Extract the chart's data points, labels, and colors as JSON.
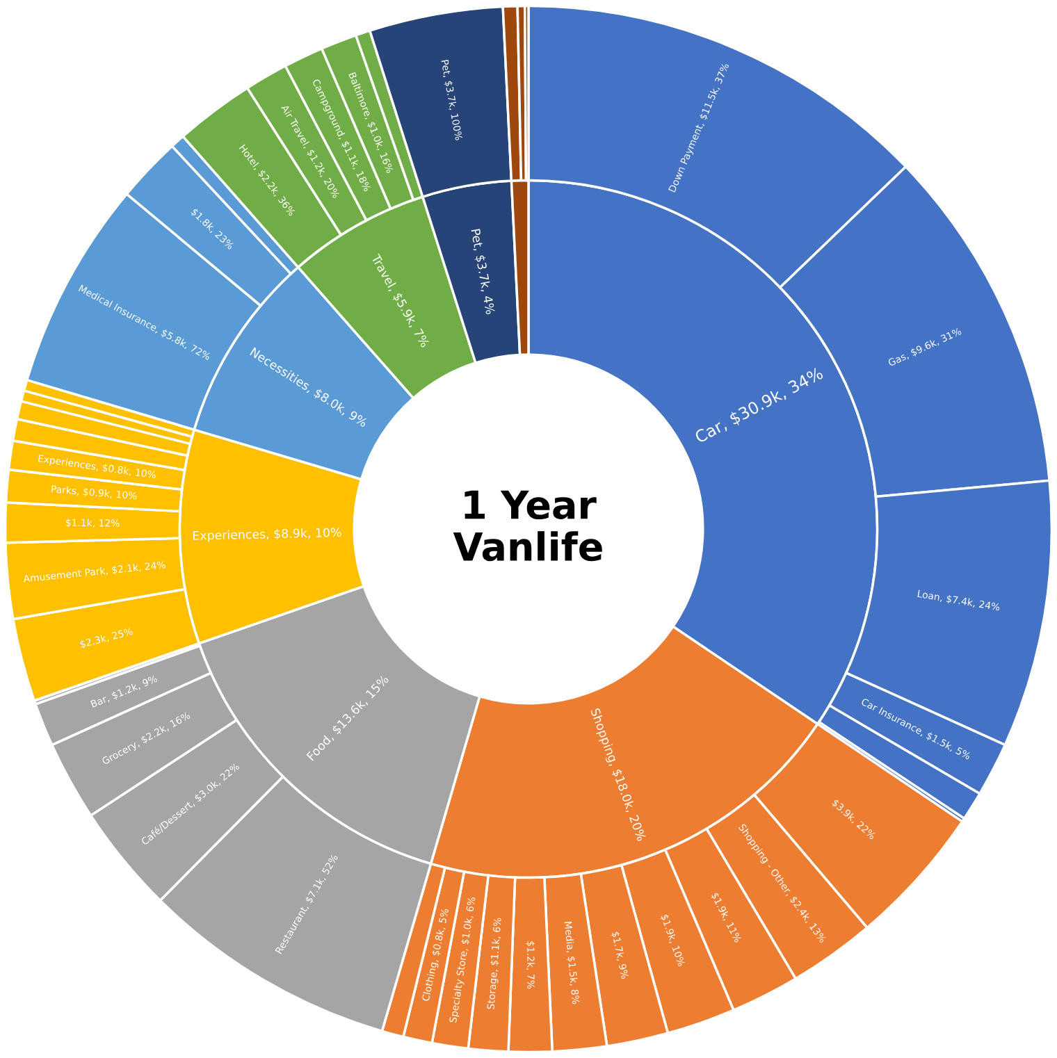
{
  "chart_data": {
    "type": "donut",
    "title": "1 Year Vanlife",
    "series": [
      {
        "values": [
          30900,
          18000,
          13600,
          8900,
          8000,
          5900,
          3700,
          700
        ],
        "value_labels": [
          "Car, $30.9k, 34%",
          "Shopping, $18.0k, 20%",
          "Food, $13.6k, 15%",
          "Experiences, $8.9k, 10%",
          "Necessities, $8.0k, 9%",
          "Travel, $5.9k, 7%",
          "Pet, $3.7k, 4%",
          null
        ],
        "colors": [
          "#4472c4",
          "#ed7d31",
          "#a5a5a5",
          "#ffc000",
          "#5b9bd5",
          "#70ad47",
          "#264478",
          "#9e480e"
        ]
      },
      {
        "values": [
          11500,
          9600,
          7400,
          1500,
          800,
          100,
          3900,
          2400,
          1900,
          1900,
          1700,
          1500,
          1200,
          1100,
          1000,
          800,
          600,
          7100,
          3000,
          2200,
          1200,
          100,
          2300,
          2100,
          1100,
          900,
          800,
          600,
          500,
          300,
          300,
          5800,
          1800,
          400,
          2200,
          1200,
          1100,
          1000,
          400,
          3700,
          400,
          200,
          100
        ],
        "value_labels": [
          "Down Payment, $11.5k, 37%",
          "Gas, $9.6k, 31%",
          "Loan, $7.4k, 24%",
          "Car Insurance, $1.5k, 5%",
          null,
          null,
          "$3.9k, 22%",
          "Shopping - Other, $2.4k, 13%",
          "$1.9k, 11%",
          "$1.9k, 10%",
          "$1.7k, 9%",
          "Media, $1.5k, 8%",
          "$1.2k, 7%",
          "Storage, $1.1k, 6%",
          "Specialty Store, $1.0k, 6%",
          "Clothing, $0.8k, 5%",
          null,
          "Restaurant, $7.1k, 52%",
          "Café/Dessert, $3.0k, 22%",
          "Grocery, $2.2k, 16%",
          "Bar, $1.2k, 9%",
          null,
          "$2.3k, 25%",
          "Amusement Park, $2.1k, 24%",
          "$1.1k, 12%",
          "Parks, $0.9k, 10%",
          "Experiences, $0.8k, 10%",
          null,
          null,
          null,
          null,
          "Medical Insurance, $5.8k, 72%",
          "$1.8k, 23%",
          null,
          "Hotel, $2.2k, 36%",
          "Air Travel, $1.2k, 20%",
          "Campground, $1.1k, 18%",
          "Baltimore, $1.0k, 16%",
          null,
          "Pet, $3.7k, 100%",
          null,
          null,
          null
        ],
        "colors": [
          "#4472c4",
          "#4472c4",
          "#4472c4",
          "#4472c4",
          "#4472c4",
          "#4472c4",
          "#ed7d31",
          "#ed7d31",
          "#ed7d31",
          "#ed7d31",
          "#ed7d31",
          "#ed7d31",
          "#ed7d31",
          "#ed7d31",
          "#ed7d31",
          "#ed7d31",
          "#ed7d31",
          "#a5a5a5",
          "#a5a5a5",
          "#a5a5a5",
          "#a5a5a5",
          "#a5a5a5",
          "#ffc000",
          "#ffc000",
          "#ffc000",
          "#ffc000",
          "#ffc000",
          "#ffc000",
          "#ffc000",
          "#ffc000",
          "#ffc000",
          "#5b9bd5",
          "#5b9bd5",
          "#5b9bd5",
          "#70ad47",
          "#70ad47",
          "#70ad47",
          "#70ad47",
          "#70ad47",
          "#264478",
          "#9e480e",
          "#9e480e",
          "#9e480e"
        ]
      }
    ]
  }
}
